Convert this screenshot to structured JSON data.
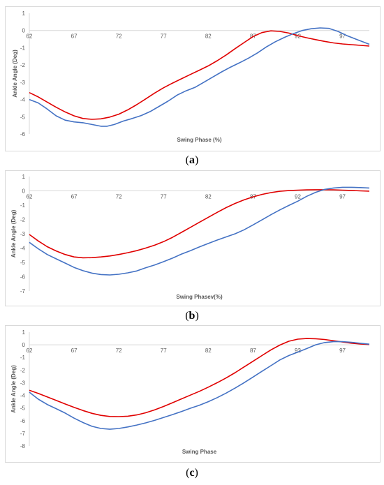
{
  "captions": [
    {
      "open": "(",
      "letter": "a",
      "close": ")"
    },
    {
      "open": "(",
      "letter": "b",
      "close": ")"
    },
    {
      "open": "(",
      "letter": "c",
      "close": ")"
    }
  ],
  "colors": {
    "red": "#e00000",
    "blue": "#4472c4",
    "axis": "#d9d9d9",
    "text": "#595959"
  },
  "chart_data": [
    {
      "type": "line",
      "xlabel": "Swing Phase (%)",
      "ylabel": "Ankle Angle (Deg)",
      "xlim": [
        62,
        100
      ],
      "ylim": [
        -6,
        1
      ],
      "xticks": [
        62,
        67,
        72,
        77,
        82,
        87,
        92,
        97
      ],
      "yticks": [
        1,
        0,
        -1,
        -2,
        -3,
        -4,
        -5,
        -6
      ],
      "grid": false,
      "series": [
        {
          "color": "#e00000",
          "points": [
            [
              62,
              -3.6
            ],
            [
              63,
              -3.85
            ],
            [
              64,
              -4.15
            ],
            [
              65,
              -4.45
            ],
            [
              66,
              -4.72
            ],
            [
              67,
              -4.95
            ],
            [
              68,
              -5.1
            ],
            [
              69,
              -5.15
            ],
            [
              70,
              -5.12
            ],
            [
              71,
              -5.02
            ],
            [
              72,
              -4.85
            ],
            [
              73,
              -4.6
            ],
            [
              74,
              -4.3
            ],
            [
              75,
              -3.97
            ],
            [
              76,
              -3.63
            ],
            [
              77,
              -3.32
            ],
            [
              78,
              -3.05
            ],
            [
              79,
              -2.8
            ],
            [
              80,
              -2.55
            ],
            [
              81,
              -2.3
            ],
            [
              82,
              -2.05
            ],
            [
              83,
              -1.75
            ],
            [
              84,
              -1.42
            ],
            [
              85,
              -1.05
            ],
            [
              86,
              -0.7
            ],
            [
              87,
              -0.35
            ],
            [
              88,
              -0.12
            ],
            [
              89,
              -0.02
            ],
            [
              90,
              -0.05
            ],
            [
              91,
              -0.15
            ],
            [
              92,
              -0.3
            ],
            [
              93,
              -0.42
            ],
            [
              94,
              -0.53
            ],
            [
              95,
              -0.63
            ],
            [
              96,
              -0.72
            ],
            [
              97,
              -0.78
            ],
            [
              98,
              -0.82
            ],
            [
              99,
              -0.86
            ],
            [
              100,
              -0.9
            ]
          ]
        },
        {
          "color": "#4472c4",
          "points": [
            [
              62,
              -4.0
            ],
            [
              63,
              -4.2
            ],
            [
              64,
              -4.55
            ],
            [
              65,
              -4.95
            ],
            [
              66,
              -5.2
            ],
            [
              67,
              -5.3
            ],
            [
              68,
              -5.35
            ],
            [
              69,
              -5.45
            ],
            [
              70,
              -5.55
            ],
            [
              70.7,
              -5.55
            ],
            [
              71.5,
              -5.45
            ],
            [
              72.5,
              -5.25
            ],
            [
              73.5,
              -5.1
            ],
            [
              74.5,
              -4.93
            ],
            [
              75.5,
              -4.7
            ],
            [
              76.5,
              -4.4
            ],
            [
              77.5,
              -4.1
            ],
            [
              78.5,
              -3.75
            ],
            [
              79.5,
              -3.5
            ],
            [
              80.5,
              -3.3
            ],
            [
              81.5,
              -3.0
            ],
            [
              82.5,
              -2.7
            ],
            [
              83.5,
              -2.4
            ],
            [
              84.5,
              -2.12
            ],
            [
              85.5,
              -1.87
            ],
            [
              86.5,
              -1.6
            ],
            [
              87.5,
              -1.3
            ],
            [
              88.5,
              -0.95
            ],
            [
              89.5,
              -0.65
            ],
            [
              90.5,
              -0.4
            ],
            [
              91.5,
              -0.18
            ],
            [
              92.5,
              0.0
            ],
            [
              93.5,
              0.1
            ],
            [
              94.5,
              0.15
            ],
            [
              95.5,
              0.12
            ],
            [
              96.5,
              -0.05
            ],
            [
              97.5,
              -0.3
            ],
            [
              98.5,
              -0.5
            ],
            [
              99.5,
              -0.7
            ],
            [
              100,
              -0.8
            ]
          ]
        }
      ]
    },
    {
      "type": "line",
      "xlabel": "Swing Phasev(%)",
      "ylabel": "Ankle Angle (Deg)",
      "xlim": [
        62,
        100
      ],
      "ylim": [
        -7,
        1
      ],
      "xticks": [
        62,
        67,
        72,
        77,
        82,
        87,
        92,
        97
      ],
      "yticks": [
        1,
        0,
        -1,
        -2,
        -3,
        -4,
        -5,
        -6,
        -7
      ],
      "grid": false,
      "series": [
        {
          "color": "#e00000",
          "points": [
            [
              62,
              -3.05
            ],
            [
              63,
              -3.5
            ],
            [
              64,
              -3.9
            ],
            [
              65,
              -4.2
            ],
            [
              66,
              -4.45
            ],
            [
              67,
              -4.62
            ],
            [
              68,
              -4.68
            ],
            [
              69,
              -4.67
            ],
            [
              70,
              -4.62
            ],
            [
              71,
              -4.55
            ],
            [
              72,
              -4.45
            ],
            [
              73,
              -4.32
            ],
            [
              74,
              -4.18
            ],
            [
              75,
              -4.0
            ],
            [
              76,
              -3.8
            ],
            [
              77,
              -3.55
            ],
            [
              78,
              -3.25
            ],
            [
              79,
              -2.9
            ],
            [
              80,
              -2.55
            ],
            [
              81,
              -2.2
            ],
            [
              82,
              -1.85
            ],
            [
              83,
              -1.5
            ],
            [
              84,
              -1.17
            ],
            [
              85,
              -0.88
            ],
            [
              86,
              -0.63
            ],
            [
              87,
              -0.42
            ],
            [
              88,
              -0.25
            ],
            [
              89,
              -0.12
            ],
            [
              90,
              -0.03
            ],
            [
              91,
              0.02
            ],
            [
              92,
              0.05
            ],
            [
              93,
              0.07
            ],
            [
              94,
              0.08
            ],
            [
              95,
              0.08
            ],
            [
              96,
              0.07
            ],
            [
              97,
              0.05
            ],
            [
              98,
              0.03
            ],
            [
              99,
              0.0
            ],
            [
              100,
              -0.02
            ]
          ]
        },
        {
          "color": "#4472c4",
          "points": [
            [
              62,
              -3.6
            ],
            [
              63,
              -4.05
            ],
            [
              64,
              -4.45
            ],
            [
              65,
              -4.75
            ],
            [
              66,
              -5.05
            ],
            [
              67,
              -5.35
            ],
            [
              68,
              -5.58
            ],
            [
              69,
              -5.75
            ],
            [
              70,
              -5.85
            ],
            [
              71,
              -5.88
            ],
            [
              72,
              -5.83
            ],
            [
              73,
              -5.73
            ],
            [
              74,
              -5.6
            ],
            [
              75,
              -5.38
            ],
            [
              76,
              -5.18
            ],
            [
              77,
              -4.95
            ],
            [
              78,
              -4.7
            ],
            [
              79,
              -4.42
            ],
            [
              80,
              -4.18
            ],
            [
              81,
              -3.92
            ],
            [
              82,
              -3.68
            ],
            [
              83,
              -3.44
            ],
            [
              84,
              -3.22
            ],
            [
              85,
              -3.0
            ],
            [
              86,
              -2.72
            ],
            [
              87,
              -2.38
            ],
            [
              88,
              -2.03
            ],
            [
              89,
              -1.67
            ],
            [
              90,
              -1.33
            ],
            [
              91,
              -1.02
            ],
            [
              92,
              -0.72
            ],
            [
              93,
              -0.38
            ],
            [
              94,
              -0.1
            ],
            [
              95,
              0.1
            ],
            [
              96,
              0.2
            ],
            [
              97,
              0.25
            ],
            [
              98,
              0.25
            ],
            [
              99,
              0.23
            ],
            [
              100,
              0.2
            ]
          ]
        }
      ]
    },
    {
      "type": "line",
      "xlabel": "Swing Phase",
      "ylabel": "Ankle Angle (Deg)",
      "xlim": [
        62,
        100
      ],
      "ylim": [
        -8,
        1
      ],
      "xticks": [
        62,
        67,
        72,
        77,
        82,
        87,
        92,
        97
      ],
      "yticks": [
        1,
        0,
        -1,
        -2,
        -3,
        -4,
        -5,
        -6,
        -7,
        -8
      ],
      "grid": false,
      "series": [
        {
          "color": "#e00000",
          "points": [
            [
              62,
              -3.6
            ],
            [
              63,
              -3.85
            ],
            [
              64,
              -4.12
            ],
            [
              65,
              -4.4
            ],
            [
              66,
              -4.68
            ],
            [
              67,
              -4.95
            ],
            [
              68,
              -5.2
            ],
            [
              69,
              -5.42
            ],
            [
              70,
              -5.58
            ],
            [
              71,
              -5.67
            ],
            [
              72,
              -5.68
            ],
            [
              73,
              -5.65
            ],
            [
              74,
              -5.55
            ],
            [
              75,
              -5.38
            ],
            [
              76,
              -5.15
            ],
            [
              77,
              -4.88
            ],
            [
              78,
              -4.58
            ],
            [
              79,
              -4.28
            ],
            [
              80,
              -3.98
            ],
            [
              81,
              -3.68
            ],
            [
              82,
              -3.35
            ],
            [
              83,
              -3.0
            ],
            [
              84,
              -2.62
            ],
            [
              85,
              -2.2
            ],
            [
              86,
              -1.75
            ],
            [
              87,
              -1.3
            ],
            [
              88,
              -0.85
            ],
            [
              89,
              -0.4
            ],
            [
              90,
              -0.02
            ],
            [
              91,
              0.28
            ],
            [
              92,
              0.45
            ],
            [
              93,
              0.5
            ],
            [
              94,
              0.48
            ],
            [
              95,
              0.42
            ],
            [
              96,
              0.32
            ],
            [
              97,
              0.22
            ],
            [
              98,
              0.13
            ],
            [
              99,
              0.06
            ],
            [
              100,
              0.02
            ]
          ]
        },
        {
          "color": "#4472c4",
          "points": [
            [
              62,
              -3.75
            ],
            [
              63,
              -4.3
            ],
            [
              64,
              -4.72
            ],
            [
              65,
              -5.05
            ],
            [
              66,
              -5.4
            ],
            [
              67,
              -5.8
            ],
            [
              68,
              -6.15
            ],
            [
              69,
              -6.45
            ],
            [
              70,
              -6.62
            ],
            [
              71,
              -6.68
            ],
            [
              72,
              -6.62
            ],
            [
              73,
              -6.5
            ],
            [
              74,
              -6.35
            ],
            [
              75,
              -6.18
            ],
            [
              76,
              -5.98
            ],
            [
              77,
              -5.75
            ],
            [
              78,
              -5.52
            ],
            [
              79,
              -5.28
            ],
            [
              80,
              -5.02
            ],
            [
              81,
              -4.78
            ],
            [
              82,
              -4.5
            ],
            [
              83,
              -4.18
            ],
            [
              84,
              -3.82
            ],
            [
              85,
              -3.42
            ],
            [
              86,
              -3.0
            ],
            [
              87,
              -2.55
            ],
            [
              88,
              -2.1
            ],
            [
              89,
              -1.65
            ],
            [
              90,
              -1.2
            ],
            [
              91,
              -0.85
            ],
            [
              92,
              -0.58
            ],
            [
              93,
              -0.3
            ],
            [
              94,
              0.0
            ],
            [
              95,
              0.18
            ],
            [
              96,
              0.25
            ],
            [
              97,
              0.25
            ],
            [
              98,
              0.2
            ],
            [
              99,
              0.12
            ],
            [
              100,
              0.05
            ]
          ]
        }
      ]
    }
  ]
}
